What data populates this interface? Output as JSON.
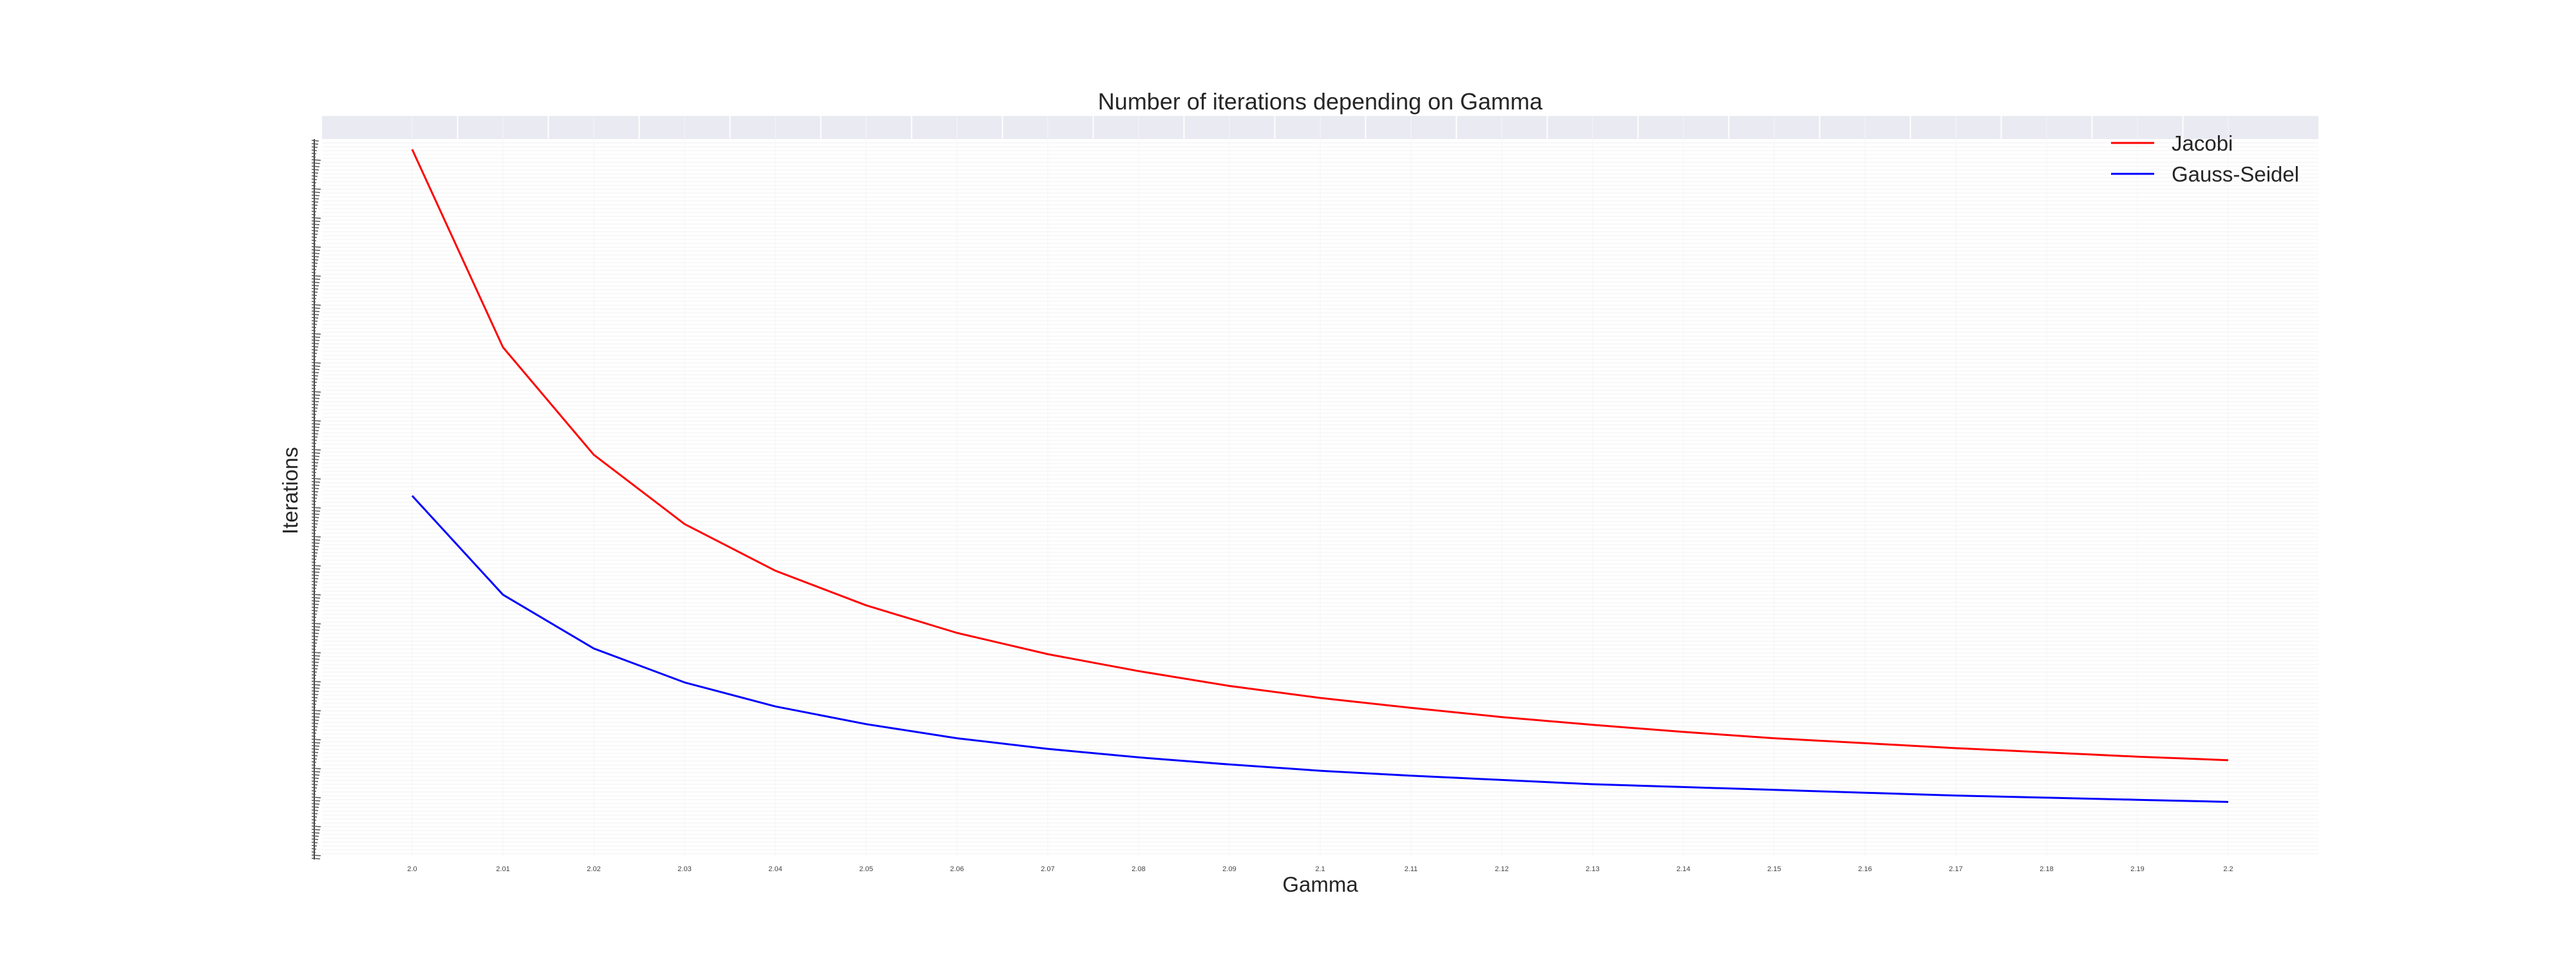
{
  "chart_data": {
    "type": "line",
    "title": "Number of iterations depending on Gamma",
    "xlabel": "Gamma",
    "ylabel": "Iterations",
    "x": [
      "2.0",
      "2.01",
      "2.02",
      "2.03",
      "2.04",
      "2.05",
      "2.06",
      "2.07",
      "2.08",
      "2.09",
      "2.1",
      "2.11",
      "2.12",
      "2.13",
      "2.14",
      "2.15",
      "2.16",
      "2.17",
      "2.18",
      "2.19",
      "2.2"
    ],
    "series": [
      {
        "name": "Jacobi",
        "color": "#ff0000",
        "values": [
          1000,
          720,
          568,
          470,
          404,
          355,
          316,
          286,
          262,
          241,
          224,
          210,
          197,
          186,
          176,
          167,
          160,
          153,
          147,
          141,
          136
        ]
      },
      {
        "name": "Gauss-Seidel",
        "color": "#0000ff",
        "values": [
          510,
          370,
          294,
          246,
          212,
          187,
          167,
          152,
          140,
          130,
          121,
          114,
          108,
          102,
          98,
          94,
          90,
          86,
          83,
          80,
          77
        ]
      }
    ],
    "ylim": [
      0,
      1000
    ],
    "grid": true,
    "legend_position": "top-right",
    "plot_background": "#ffffff",
    "top_band_color": "#eaeaf2",
    "grid_color": "#f0f0f0"
  }
}
